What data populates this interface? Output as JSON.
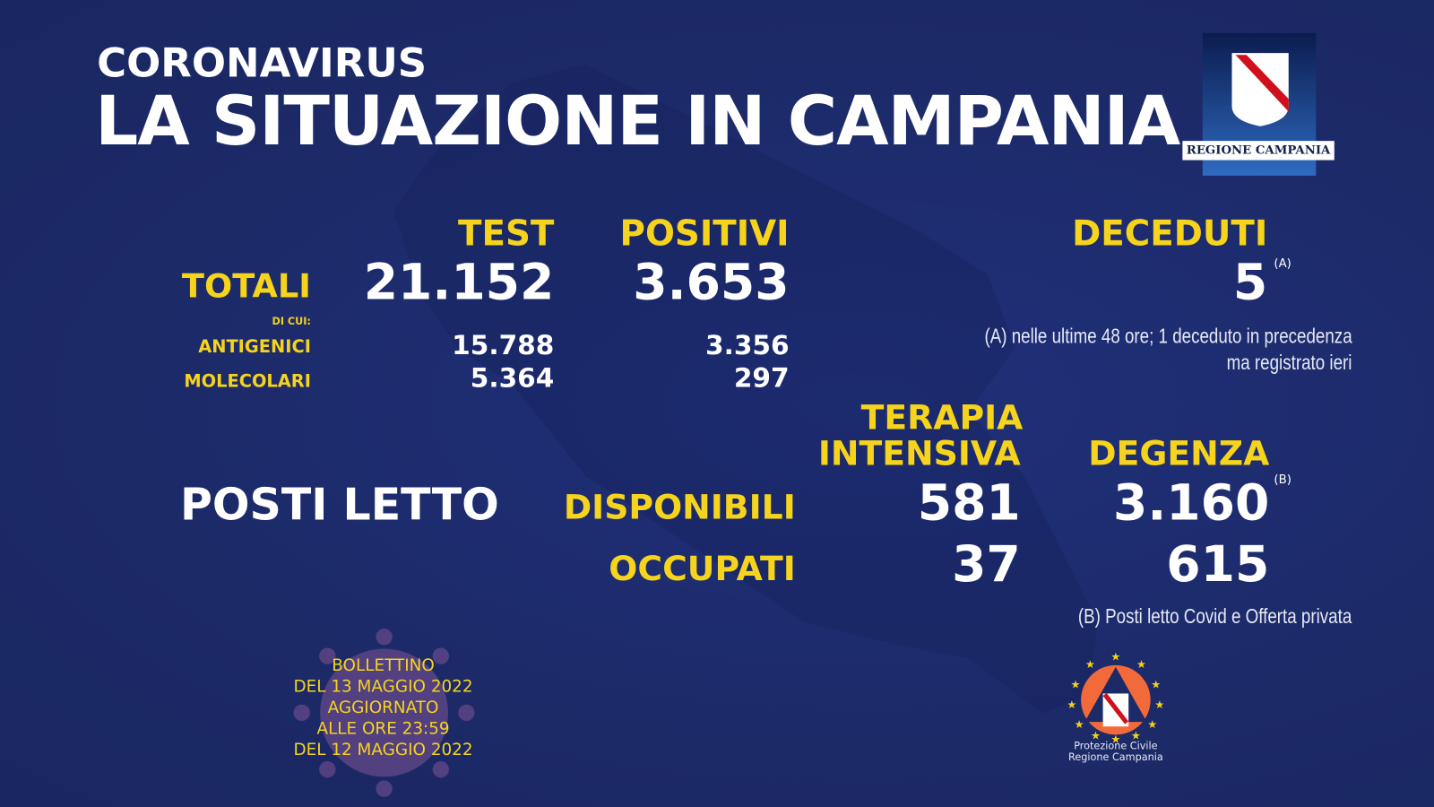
{
  "header": {
    "kicker": "CORONAVIRUS",
    "title": "LA SITUAZIONE IN CAMPANIA"
  },
  "logo": {
    "text": "REGIONE CAMPANIA"
  },
  "columns": {
    "test": "TEST",
    "positivi": "POSITIVI",
    "deceduti": "DECEDUTI"
  },
  "rows": {
    "totali": {
      "label": "TOTALI",
      "test": "21.152",
      "positivi": "3.653"
    },
    "di_cui": "DI CUI:",
    "antigenici": {
      "label": "ANTIGENICI",
      "test": "15.788",
      "positivi": "3.356"
    },
    "molecolari": {
      "label": "MOLECOLARI",
      "test": "5.364",
      "positivi": "297"
    }
  },
  "deceduti": {
    "value": "5",
    "note_mark": "(A)",
    "note": "(A) nelle ultime 48 ore; 1 deceduto in precedenza",
    "note2": "ma registrato ieri"
  },
  "posti_letto": {
    "title": "POSTI LETTO",
    "col_ti_1": "TERAPIA",
    "col_ti_2": "INTENSIVA",
    "col_degenza": "DEGENZA",
    "disponibili": {
      "label": "DISPONIBILI",
      "ti": "581",
      "degenza": "3.160"
    },
    "occupati": {
      "label": "OCCUPATI",
      "ti": "37",
      "degenza": "615"
    },
    "note_mark": "(B)",
    "note": "(B) Posti letto Covid e Offerta privata"
  },
  "bollettino": [
    "BOLLETTINO",
    "DEL 13 MAGGIO 2022",
    "AGGIORNATO",
    "ALLE ORE 23:59",
    "DEL 12 MAGGIO 2022"
  ],
  "protezione": {
    "line1": "Protezione Civile",
    "line2": "Regione Campania"
  },
  "colors": {
    "background": "#1c2a68",
    "accent": "#f6d31c",
    "text": "#ffffff"
  }
}
